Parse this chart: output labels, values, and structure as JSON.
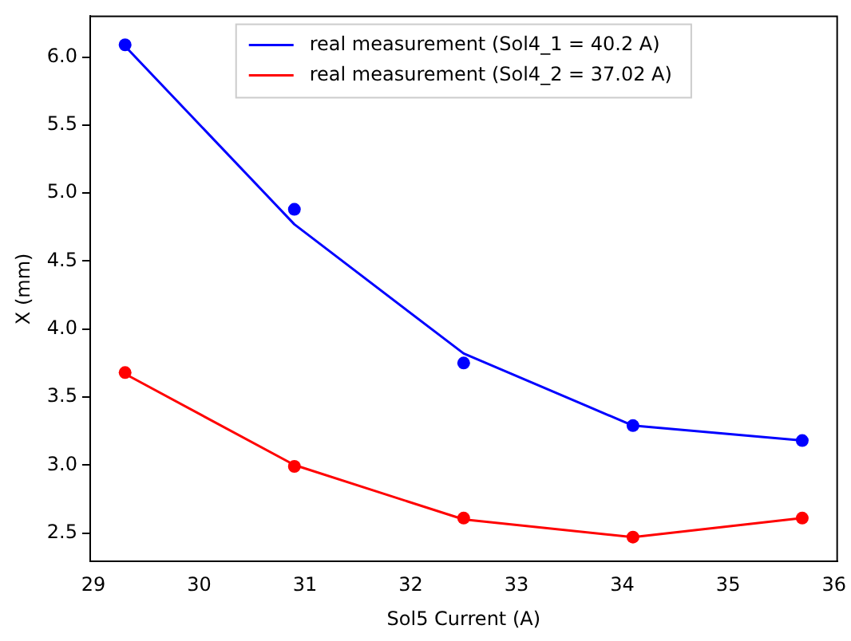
{
  "chart_data": {
    "type": "line",
    "xlabel": "Sol5 Current (A)",
    "ylabel": "X (mm)",
    "xlim": [
      28.97,
      36.03
    ],
    "xticks": [
      29,
      30,
      31,
      32,
      33,
      34,
      35,
      36
    ],
    "ylim": [
      2.29,
      6.3
    ],
    "yticks": [
      {
        "value": 2.5,
        "label": "2.5"
      },
      {
        "value": 3,
        "label": "3.0"
      },
      {
        "value": 3.5,
        "label": "3.5"
      },
      {
        "value": 4,
        "label": "4.0"
      },
      {
        "value": 4.5,
        "label": "4.5"
      },
      {
        "value": 5,
        "label": "5.0"
      },
      {
        "value": 5.5,
        "label": "5.5"
      },
      {
        "value": 6,
        "label": "6.0"
      }
    ],
    "legend": "top",
    "grid": false,
    "x": [
      29.3,
      30.9,
      32.5,
      34.1,
      35.7
    ],
    "series": [
      {
        "name": "real measurement (Sol4_1 = 40.2 A)",
        "color": "#0000ff",
        "marker": "none",
        "values": [
          6.08,
          4.77,
          3.82,
          3.29,
          3.18
        ]
      },
      {
        "name": "real measurement (Sol4_2 = 37.02 A)",
        "color": "#ff0000",
        "marker": "none",
        "values": [
          3.67,
          3.0,
          2.6,
          2.47,
          2.61
        ]
      },
      {
        "type": "scatter",
        "color": "#0000ff",
        "marker": "circle",
        "values": [
          6.09,
          4.88,
          3.75,
          3.29,
          3.18
        ]
      },
      {
        "type": "scatter",
        "color": "#ff0000",
        "marker": "circle",
        "values": [
          3.68,
          2.99,
          2.61,
          2.47,
          2.61
        ]
      }
    ]
  }
}
